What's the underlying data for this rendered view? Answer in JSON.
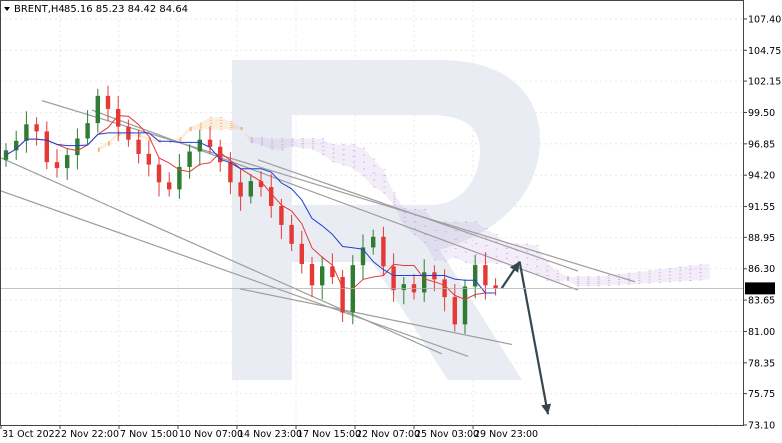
{
  "header": {
    "symbol": "BRENT,H4",
    "ohlc": "85.16 85.23 84.42 84.64"
  },
  "chart_data": {
    "type": "candlestick",
    "title": "BRENT,H4 85.16 85.23 84.42 84.64",
    "ylim": [
      73.1,
      109.0
    ],
    "y_ticks": [
      "107.40",
      "104.75",
      "102.15",
      "99.50",
      "96.85",
      "94.20",
      "91.55",
      "88.95",
      "86.30",
      "83.65",
      "81.00",
      "78.35",
      "75.75",
      "73.10"
    ],
    "x_ticks": [
      "31 Oct 2022",
      "2 Nov 22:00",
      "7 Nov 15:00",
      "10 Nov 07:00",
      "14 Nov 23:00",
      "17 Nov 15:00",
      "22 Nov 07:00",
      "25 Nov 03:00",
      "29 Nov 23:00"
    ],
    "current_price": "84.64",
    "grid": true,
    "colors": {
      "up": "#2e7d32",
      "down": "#e53935",
      "tenkan": "#e53935",
      "kijun": "#1f3fd6",
      "cloud_up": "#f0a050",
      "cloud_down": "#b79bd6",
      "trendline": "#9e9e9e",
      "forecast": "#37474f",
      "price_marker": "#000000"
    },
    "close_path": [
      96.3,
      97.1,
      98.5,
      97.9,
      95.3,
      94.8,
      95.9,
      97.3,
      98.6,
      100.9,
      99.8,
      98.3,
      97.2,
      96.0,
      95.1,
      93.6,
      93.0,
      94.9,
      96.2,
      97.2,
      96.6,
      95.3,
      93.6,
      92.4,
      93.7,
      93.2,
      91.6,
      90.0,
      88.4,
      86.7,
      84.9,
      86.5,
      85.6,
      82.6,
      86.6,
      88.1,
      89.0,
      86.5,
      84.5,
      85.0,
      84.3,
      86.0,
      85.4,
      83.9,
      81.6,
      84.8,
      86.6,
      84.9,
      84.64
    ],
    "forecast": [
      {
        "label": "up",
        "from": 84.64,
        "to": 86.9
      },
      {
        "label": "down",
        "from": 86.9,
        "to": 74.0
      }
    ]
  }
}
